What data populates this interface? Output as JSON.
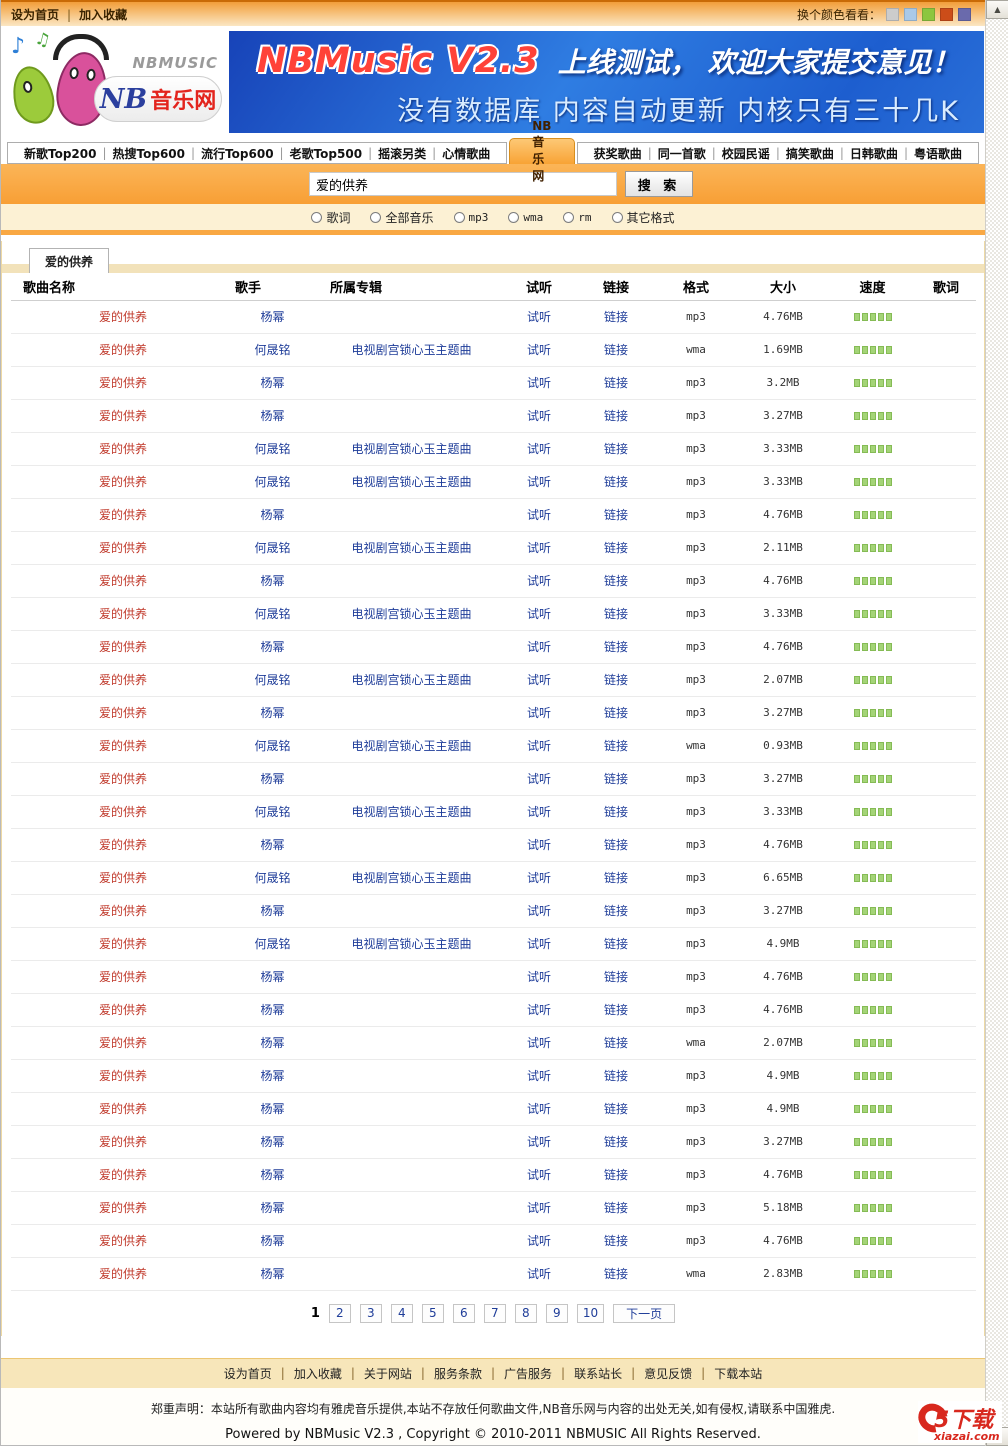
{
  "topbar": {
    "links": [
      "设为首页",
      "加入收藏"
    ],
    "color_label": "换个颜色看看：",
    "colors": [
      "#cccccc",
      "#a9c9e8",
      "#8cc63f",
      "#cc4d19",
      "#6a6aac"
    ]
  },
  "header": {
    "logo_caption": "NBMUSIC",
    "logo_nb": "NB",
    "logo_cn": "音乐网",
    "banner_title": "NBMusic V2.3",
    "banner_subtitle": "上线测试， 欢迎大家提交意见！",
    "banner_line2": "没有数据库  内容自动更新  内核只有三十几K"
  },
  "nav": {
    "left_items": [
      "新歌Top200",
      "热搜Top600",
      "流行Top600",
      "老歌Top500",
      "摇滚另类",
      "心情歌曲"
    ],
    "active": "NB音乐网",
    "right_items": [
      "获奖歌曲",
      "同一首歌",
      "校园民谣",
      "搞笑歌曲",
      "日韩歌曲",
      "粤语歌曲"
    ]
  },
  "search": {
    "query": "爱的供养",
    "button": "搜 索",
    "options": [
      {
        "label": "歌词",
        "mono": false
      },
      {
        "label": "全部音乐",
        "mono": false
      },
      {
        "label": "mp3",
        "mono": true
      },
      {
        "label": "wma",
        "mono": true
      },
      {
        "label": "rm",
        "mono": true
      },
      {
        "label": "其它格式",
        "mono": false
      }
    ]
  },
  "results": {
    "tab": "爱的供养",
    "columns": [
      "歌曲名称",
      "歌手",
      "所属专辑",
      "试听",
      "链接",
      "格式",
      "大小",
      "速度",
      "歌词"
    ],
    "listen_label": "试听",
    "link_label": "链接",
    "rows": [
      {
        "name": "爱的供养",
        "artist": "杨幂",
        "album": "",
        "format": "mp3",
        "size": "4.76MB",
        "speed": 5
      },
      {
        "name": "爱的供养",
        "artist": "何晟铭",
        "album": "电视剧宫锁心玉主题曲",
        "format": "wma",
        "size": "1.69MB",
        "speed": 5
      },
      {
        "name": "爱的供养",
        "artist": "杨幂",
        "album": "",
        "format": "mp3",
        "size": "3.2MB",
        "speed": 5
      },
      {
        "name": "爱的供养",
        "artist": "杨幂",
        "album": "",
        "format": "mp3",
        "size": "3.27MB",
        "speed": 5
      },
      {
        "name": "爱的供养",
        "artist": "何晟铭",
        "album": "电视剧宫锁心玉主题曲",
        "format": "mp3",
        "size": "3.33MB",
        "speed": 5
      },
      {
        "name": "爱的供养",
        "artist": "何晟铭",
        "album": "电视剧宫锁心玉主题曲",
        "format": "mp3",
        "size": "3.33MB",
        "speed": 5
      },
      {
        "name": "爱的供养",
        "artist": "杨幂",
        "album": "",
        "format": "mp3",
        "size": "4.76MB",
        "speed": 5
      },
      {
        "name": "爱的供养",
        "artist": "何晟铭",
        "album": "电视剧宫锁心玉主题曲",
        "format": "mp3",
        "size": "2.11MB",
        "speed": 5
      },
      {
        "name": "爱的供养",
        "artist": "杨幂",
        "album": "",
        "format": "mp3",
        "size": "4.76MB",
        "speed": 5
      },
      {
        "name": "爱的供养",
        "artist": "何晟铭",
        "album": "电视剧宫锁心玉主题曲",
        "format": "mp3",
        "size": "3.33MB",
        "speed": 5
      },
      {
        "name": "爱的供养",
        "artist": "杨幂",
        "album": "",
        "format": "mp3",
        "size": "4.76MB",
        "speed": 5
      },
      {
        "name": "爱的供养",
        "artist": "何晟铭",
        "album": "电视剧宫锁心玉主题曲",
        "format": "mp3",
        "size": "2.07MB",
        "speed": 5
      },
      {
        "name": "爱的供养",
        "artist": "杨幂",
        "album": "",
        "format": "mp3",
        "size": "3.27MB",
        "speed": 5
      },
      {
        "name": "爱的供养",
        "artist": "何晟铭",
        "album": "电视剧宫锁心玉主题曲",
        "format": "wma",
        "size": "0.93MB",
        "speed": 5
      },
      {
        "name": "爱的供养",
        "artist": "杨幂",
        "album": "",
        "format": "mp3",
        "size": "3.27MB",
        "speed": 5
      },
      {
        "name": "爱的供养",
        "artist": "何晟铭",
        "album": "电视剧宫锁心玉主题曲",
        "format": "mp3",
        "size": "3.33MB",
        "speed": 5
      },
      {
        "name": "爱的供养",
        "artist": "杨幂",
        "album": "",
        "format": "mp3",
        "size": "4.76MB",
        "speed": 5
      },
      {
        "name": "爱的供养",
        "artist": "何晟铭",
        "album": "电视剧宫锁心玉主题曲",
        "format": "mp3",
        "size": "6.65MB",
        "speed": 5
      },
      {
        "name": "爱的供养",
        "artist": "杨幂",
        "album": "",
        "format": "mp3",
        "size": "3.27MB",
        "speed": 5
      },
      {
        "name": "爱的供养",
        "artist": "何晟铭",
        "album": "电视剧宫锁心玉主题曲",
        "format": "mp3",
        "size": "4.9MB",
        "speed": 5
      },
      {
        "name": "爱的供养",
        "artist": "杨幂",
        "album": "",
        "format": "mp3",
        "size": "4.76MB",
        "speed": 5
      },
      {
        "name": "爱的供养",
        "artist": "杨幂",
        "album": "",
        "format": "mp3",
        "size": "4.76MB",
        "speed": 5
      },
      {
        "name": "爱的供养",
        "artist": "杨幂",
        "album": "",
        "format": "wma",
        "size": "2.07MB",
        "speed": 5
      },
      {
        "name": "爱的供养",
        "artist": "杨幂",
        "album": "",
        "format": "mp3",
        "size": "4.9MB",
        "speed": 5
      },
      {
        "name": "爱的供养",
        "artist": "杨幂",
        "album": "",
        "format": "mp3",
        "size": "4.9MB",
        "speed": 5
      },
      {
        "name": "爱的供养",
        "artist": "杨幂",
        "album": "",
        "format": "mp3",
        "size": "3.27MB",
        "speed": 5
      },
      {
        "name": "爱的供养",
        "artist": "杨幂",
        "album": "",
        "format": "mp3",
        "size": "4.76MB",
        "speed": 5
      },
      {
        "name": "爱的供养",
        "artist": "杨幂",
        "album": "",
        "format": "mp3",
        "size": "5.18MB",
        "speed": 5
      },
      {
        "name": "爱的供养",
        "artist": "杨幂",
        "album": "",
        "format": "mp3",
        "size": "4.76MB",
        "speed": 5
      },
      {
        "name": "爱的供养",
        "artist": "杨幂",
        "album": "",
        "format": "wma",
        "size": "2.83MB",
        "speed": 5
      }
    ]
  },
  "pagination": {
    "current": "1",
    "pages": [
      "2",
      "3",
      "4",
      "5",
      "6",
      "7",
      "8",
      "9",
      "10"
    ],
    "next": "下一页"
  },
  "footer": {
    "links": [
      "设为首页",
      "加入收藏",
      "关于网站",
      "服务条款",
      "广告服务",
      "联系站长",
      "意见反馈",
      "下载本站"
    ],
    "disclaimer": "郑重声明：本站所有歌曲内容均有雅虎音乐提供,本站不存放任何歌曲文件,NB音乐网与内容的出处无关,如有侵权,请联系中国雅虎.",
    "copyright": "Powered by NBMusic V2.3 , Copyright © 2010-2011 NBMUSIC All Rights Reserved."
  },
  "watermark": {
    "text": "5下载",
    "domain": "xiazai.com"
  }
}
